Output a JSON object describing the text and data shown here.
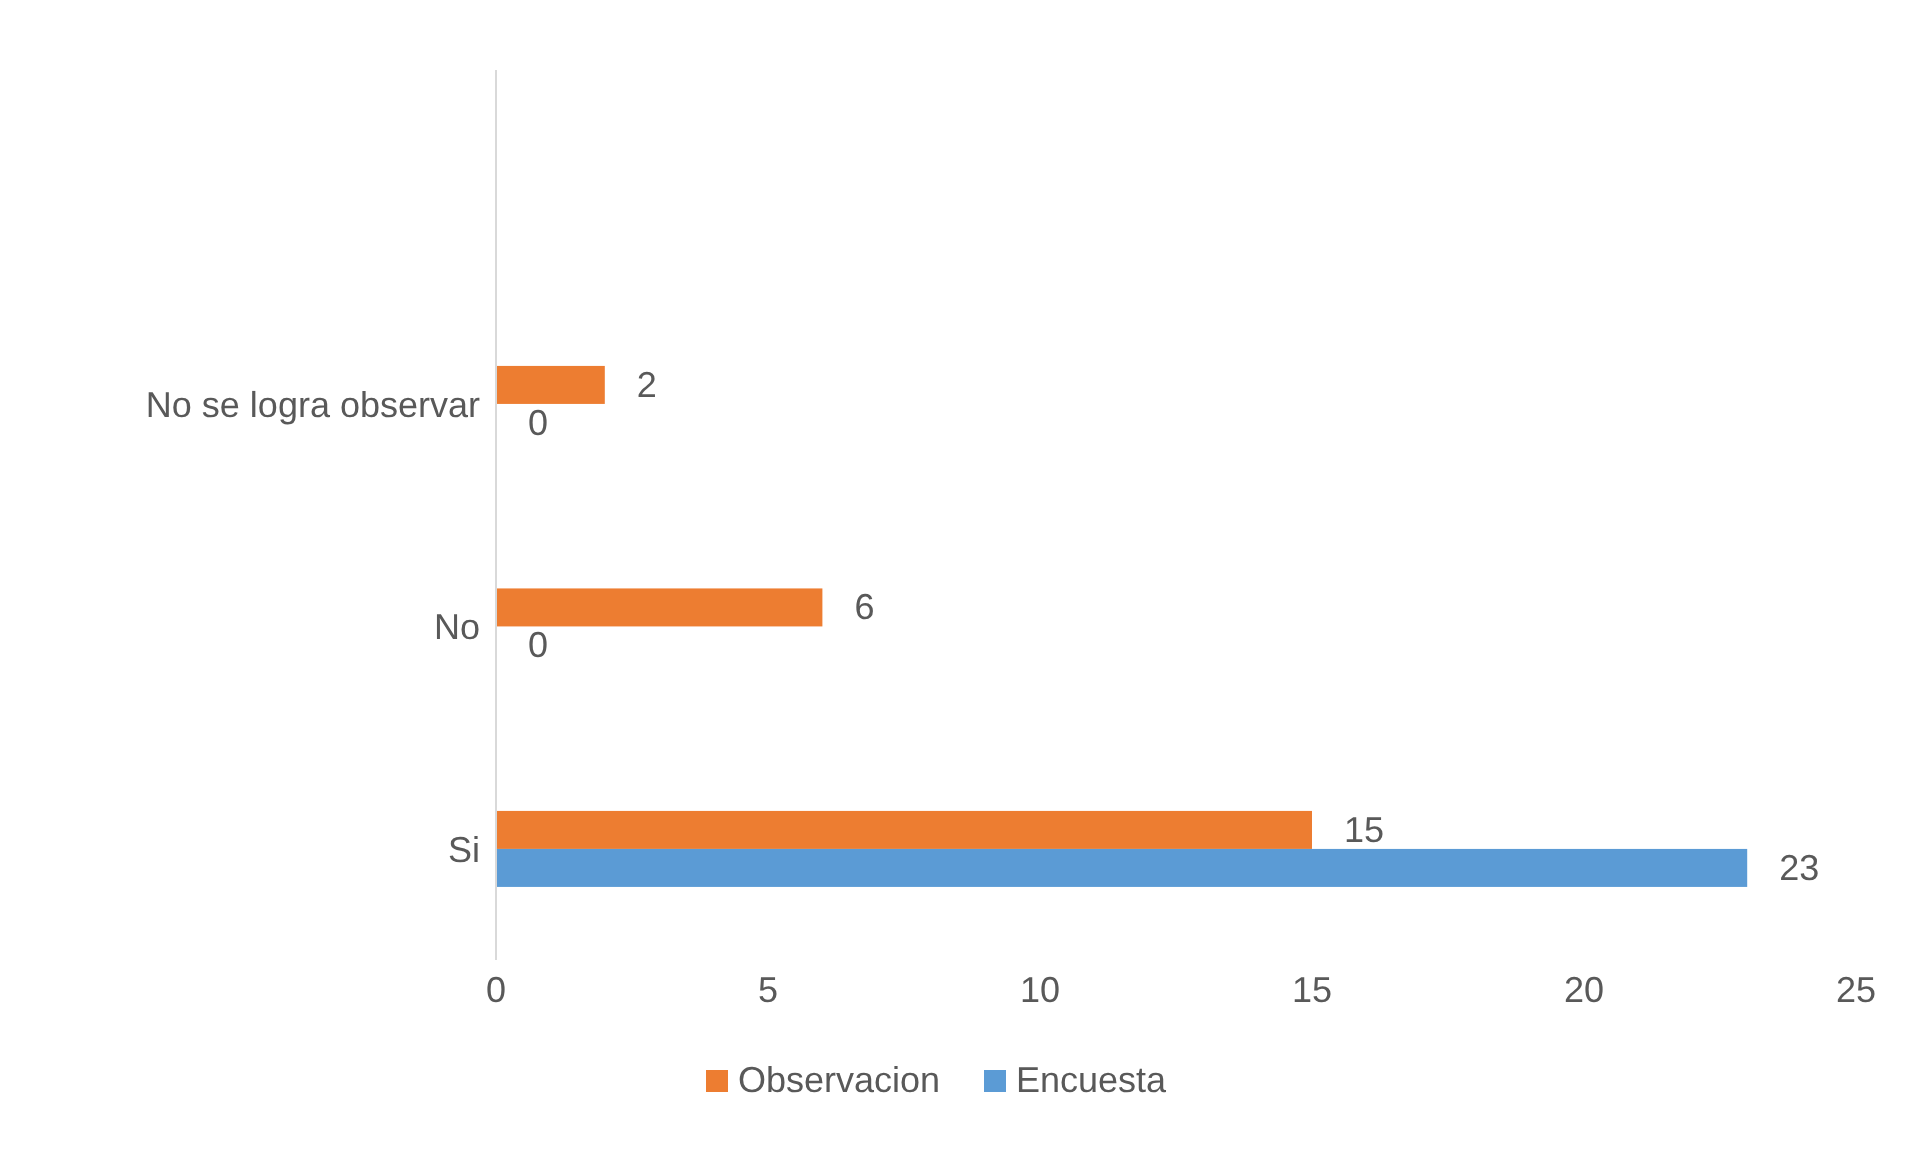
{
  "chart_data": {
    "type": "bar",
    "orientation": "horizontal",
    "categories": [
      null,
      "No se logra observar",
      "No",
      "Si"
    ],
    "series": [
      {
        "name": "Observacion",
        "color": "#ed7d31",
        "values": [
          null,
          2,
          6,
          15
        ]
      },
      {
        "name": "Encuesta",
        "color": "#5b9bd5",
        "values": [
          null,
          0,
          0,
          23
        ]
      }
    ],
    "xlim": [
      0,
      25
    ],
    "xticks": [
      0,
      5,
      10,
      15,
      20,
      25
    ],
    "grid": false,
    "legend": "bottom",
    "data_labels": true
  }
}
